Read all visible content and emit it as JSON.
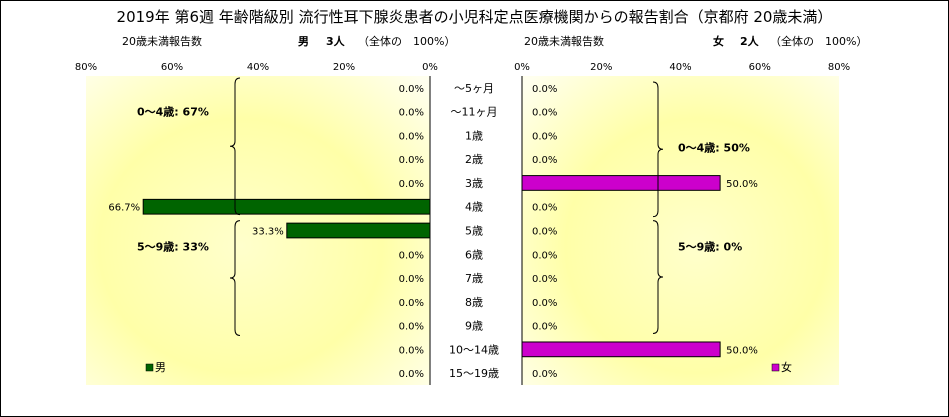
{
  "title": "2019年 第6週 年齢階級別 流行性耳下腺炎患者の小児科定点医療機関からの報告割合（京都府 20歳未満）",
  "left_header": {
    "caption": "20歳未満報告数",
    "label": "男",
    "count": "3人",
    "total": "（全体の　100%）"
  },
  "right_header": {
    "caption": "20歳未満報告数",
    "label": "女",
    "count": "2人",
    "total": "（全体の　100%）"
  },
  "chart_data": [
    {
      "type": "bar",
      "orientation": "horizontal-reversed",
      "categories": [
        "～5ヶ月",
        "～11ヶ月",
        "1歳",
        "2歳",
        "3歳",
        "4歳",
        "5歳",
        "6歳",
        "7歳",
        "8歳",
        "9歳",
        "10～14歳",
        "15～19歳"
      ],
      "series": [
        {
          "name": "男",
          "values": [
            0,
            0,
            0,
            0,
            0,
            66.7,
            33.3,
            0,
            0,
            0,
            0,
            0,
            0
          ],
          "color": "#006400"
        }
      ],
      "data_labels": [
        "0.0%",
        "0.0%",
        "0.0%",
        "0.0%",
        "0.0%",
        "66.7%",
        "33.3%",
        "0.0%",
        "0.0%",
        "0.0%",
        "0.0%",
        "0.0%",
        "0.0%"
      ],
      "xlim": [
        0,
        80
      ],
      "ticks": [
        "80%",
        "60%",
        "40%",
        "20%",
        "0%"
      ],
      "legend": "bottom-left",
      "annotations": [
        {
          "text": "0～4歳: 67%",
          "from": "～5ヶ月",
          "to": "4歳"
        },
        {
          "text": "5～9歳: 33%",
          "from": "5歳",
          "to": "9歳"
        }
      ]
    },
    {
      "type": "bar",
      "orientation": "horizontal",
      "categories": [
        "～5ヶ月",
        "～11ヶ月",
        "1歳",
        "2歳",
        "3歳",
        "4歳",
        "5歳",
        "6歳",
        "7歳",
        "8歳",
        "9歳",
        "10～14歳",
        "15～19歳"
      ],
      "series": [
        {
          "name": "女",
          "values": [
            0,
            0,
            0,
            0,
            50,
            0,
            0,
            0,
            0,
            0,
            0,
            50,
            0
          ],
          "color": "#cc00cc"
        }
      ],
      "data_labels": [
        "0.0%",
        "0.0%",
        "0.0%",
        "0.0%",
        "50.0%",
        "0.0%",
        "0.0%",
        "0.0%",
        "0.0%",
        "0.0%",
        "0.0%",
        "50.0%",
        "0.0%"
      ],
      "xlim": [
        0,
        80
      ],
      "ticks": [
        "0%",
        "20%",
        "40%",
        "60%",
        "80%"
      ],
      "legend": "bottom-right",
      "annotations": [
        {
          "text": "0～4歳: 50%",
          "from": "～5ヶ月",
          "to": "4歳"
        },
        {
          "text": "5～9歳: 0%",
          "from": "5歳",
          "to": "9歳"
        }
      ]
    }
  ]
}
